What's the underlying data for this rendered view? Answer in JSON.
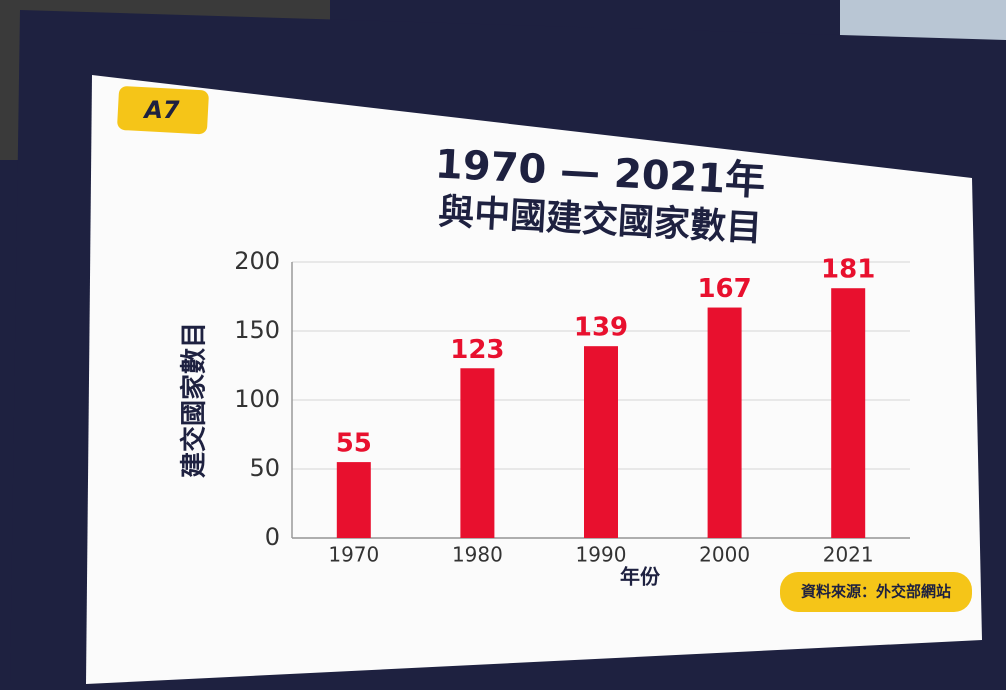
{
  "chart_data": {
    "type": "bar",
    "badge": "A7",
    "title": "1970 — 2021年",
    "subtitle": "與中國建交國家數目",
    "y_label": "建交國家數目",
    "x_label": "年份",
    "source": "資料來源：外交部網站",
    "categories": [
      "1970",
      "1980",
      "1990",
      "2000",
      "2021"
    ],
    "values": [
      55,
      123,
      139,
      167,
      181
    ],
    "color": "#e8102e",
    "ylim": [
      0,
      200
    ],
    "yticks": [
      0,
      50,
      100,
      150,
      200
    ],
    "grid": true
  }
}
